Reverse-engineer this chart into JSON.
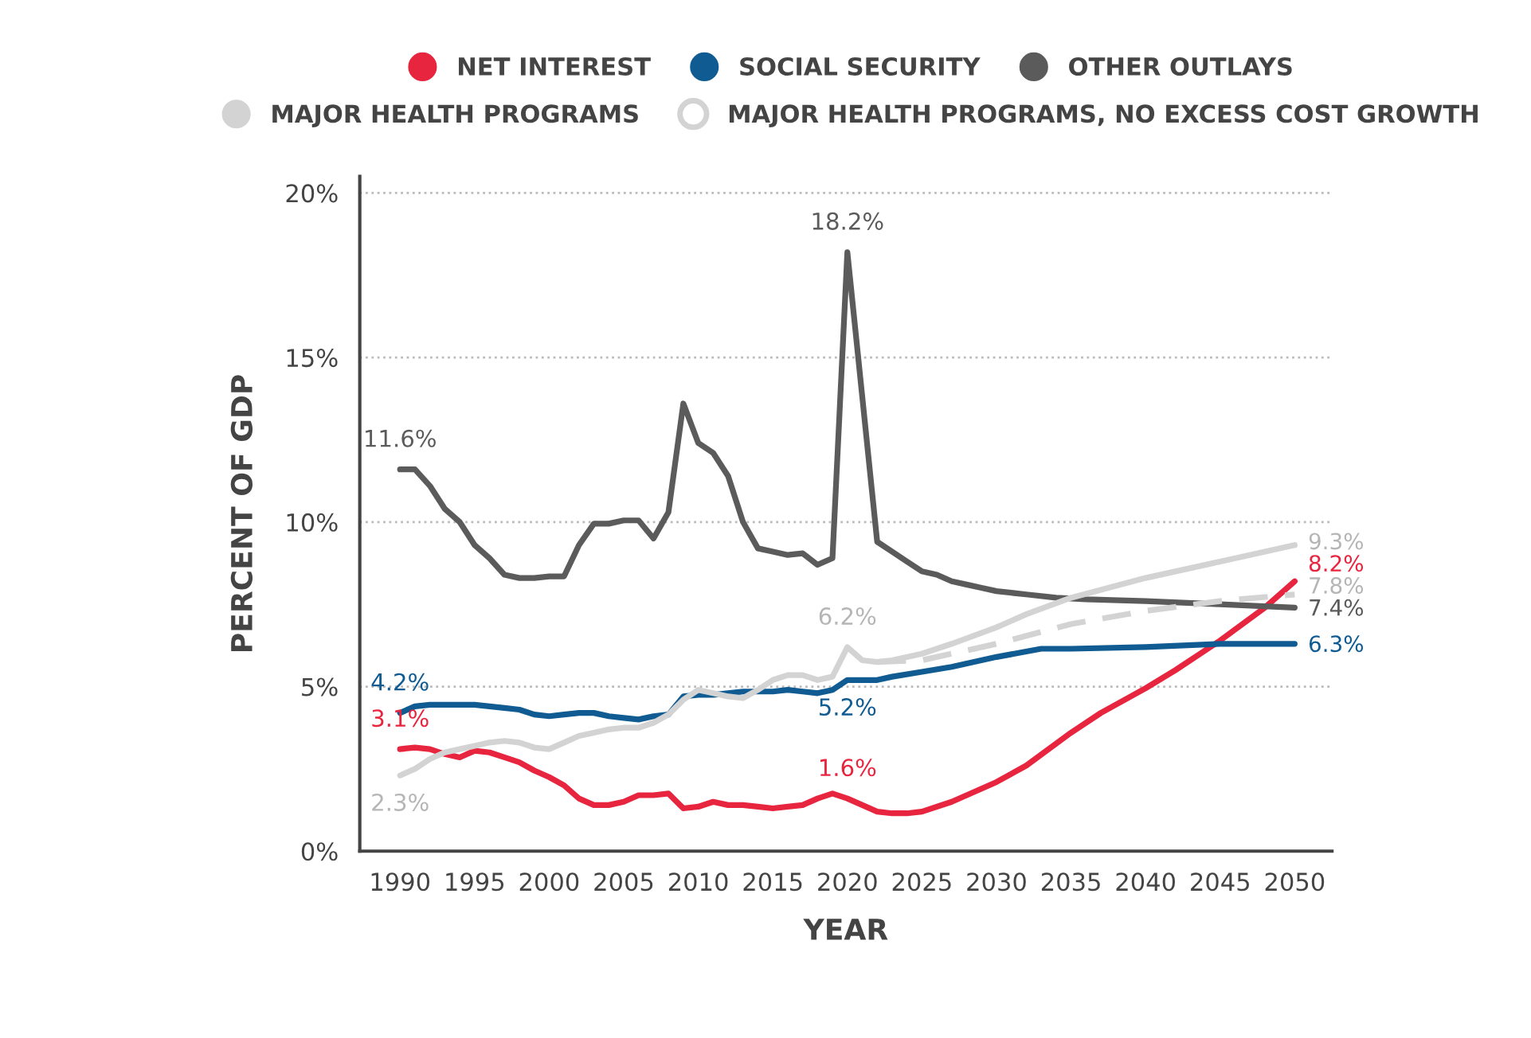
{
  "chart_data": {
    "type": "line",
    "xlabel": "YEAR",
    "ylabel": "PERCENT OF GDP",
    "xlim": [
      1987.3,
      2052.5
    ],
    "xticks": [
      1990,
      1995,
      2000,
      2005,
      2010,
      2015,
      2020,
      2025,
      2030,
      2035,
      2040,
      2045,
      2050
    ],
    "ylim": [
      0,
      20.5
    ],
    "yticks": [
      {
        "value": 0,
        "label": "0%"
      },
      {
        "value": 5,
        "label": "5%"
      },
      {
        "value": 10,
        "label": "10%"
      },
      {
        "value": 15,
        "label": "15%"
      },
      {
        "value": 20,
        "label": "20%"
      }
    ],
    "grid": "y",
    "legend": "top",
    "line_style": "solid",
    "series": [
      {
        "name": "NET INTEREST",
        "color": "#e8253f",
        "x": [
          1990,
          1991,
          1992,
          1993,
          1994,
          1995,
          1996,
          1997,
          1998,
          1999,
          2000,
          2001,
          2002,
          2003,
          2004,
          2005,
          2006,
          2007,
          2008,
          2009,
          2010,
          2011,
          2012,
          2013,
          2014,
          2015,
          2016,
          2017,
          2018,
          2019,
          2020,
          2021,
          2022,
          2023,
          2024,
          2025,
          2027,
          2030,
          2032,
          2035,
          2037,
          2040,
          2042,
          2045,
          2048,
          2050
        ],
        "values": [
          3.1,
          3.15,
          3.1,
          2.95,
          2.85,
          3.05,
          3.0,
          2.85,
          2.7,
          2.45,
          2.25,
          2.0,
          1.6,
          1.4,
          1.4,
          1.5,
          1.7,
          1.7,
          1.75,
          1.3,
          1.35,
          1.5,
          1.4,
          1.4,
          1.35,
          1.3,
          1.35,
          1.4,
          1.6,
          1.75,
          1.6,
          1.4,
          1.2,
          1.15,
          1.15,
          1.2,
          1.5,
          2.1,
          2.6,
          3.6,
          4.2,
          4.95,
          5.5,
          6.4,
          7.4,
          8.2
        ]
      },
      {
        "name": "SOCIAL SECURITY",
        "color": "#0f5b92",
        "x": [
          1990,
          1991,
          1992,
          1993,
          1994,
          1995,
          1996,
          1997,
          1998,
          1999,
          2000,
          2001,
          2002,
          2003,
          2004,
          2005,
          2006,
          2007,
          2008,
          2009,
          2010,
          2011,
          2012,
          2013,
          2014,
          2015,
          2016,
          2017,
          2018,
          2019,
          2020,
          2021,
          2022,
          2023,
          2025,
          2027,
          2030,
          2033,
          2035,
          2040,
          2045,
          2050
        ],
        "values": [
          4.2,
          4.4,
          4.45,
          4.45,
          4.45,
          4.45,
          4.4,
          4.35,
          4.3,
          4.15,
          4.1,
          4.15,
          4.2,
          4.2,
          4.1,
          4.05,
          4.0,
          4.1,
          4.15,
          4.7,
          4.75,
          4.75,
          4.8,
          4.85,
          4.85,
          4.85,
          4.9,
          4.85,
          4.8,
          4.9,
          5.2,
          5.2,
          5.2,
          5.3,
          5.45,
          5.6,
          5.9,
          6.15,
          6.15,
          6.2,
          6.3,
          6.3
        ]
      },
      {
        "name": "OTHER OUTLAYS",
        "color": "#5b5b5b",
        "x": [
          1990,
          1991,
          1992,
          1993,
          1994,
          1995,
          1996,
          1997,
          1998,
          1999,
          2000,
          2001,
          2002,
          2003,
          2004,
          2005,
          2006,
          2007,
          2008,
          2009,
          2010,
          2011,
          2012,
          2013,
          2014,
          2015,
          2016,
          2017,
          2018,
          2019,
          2020,
          2021,
          2022,
          2023,
          2024,
          2025,
          2026,
          2027,
          2028,
          2029,
          2030,
          2032,
          2034,
          2036,
          2040,
          2045,
          2050
        ],
        "values": [
          11.6,
          11.6,
          11.1,
          10.4,
          10.0,
          9.3,
          8.9,
          8.4,
          8.3,
          8.3,
          8.35,
          8.35,
          9.3,
          9.95,
          9.95,
          10.05,
          10.05,
          9.5,
          10.3,
          13.6,
          12.4,
          12.1,
          11.4,
          10.0,
          9.2,
          9.1,
          9.0,
          9.05,
          8.7,
          8.9,
          18.2,
          13.8,
          9.4,
          9.1,
          8.8,
          8.5,
          8.4,
          8.2,
          8.1,
          8.0,
          7.9,
          7.8,
          7.7,
          7.65,
          7.6,
          7.5,
          7.4
        ]
      },
      {
        "name": "MAJOR HEALTH PROGRAMS",
        "color": "#d3d3d3",
        "x": [
          1990,
          1991,
          1992,
          1993,
          1994,
          1995,
          1996,
          1997,
          1998,
          1999,
          2000,
          2001,
          2002,
          2003,
          2004,
          2005,
          2006,
          2007,
          2008,
          2009,
          2010,
          2011,
          2012,
          2013,
          2014,
          2015,
          2016,
          2017,
          2018,
          2019,
          2020,
          2021,
          2022,
          2023,
          2025,
          2027,
          2030,
          2032,
          2035,
          2040,
          2045,
          2050
        ],
        "values": [
          2.3,
          2.5,
          2.8,
          3.0,
          3.1,
          3.2,
          3.3,
          3.35,
          3.3,
          3.15,
          3.1,
          3.3,
          3.5,
          3.6,
          3.7,
          3.75,
          3.75,
          3.9,
          4.15,
          4.6,
          4.9,
          4.8,
          4.7,
          4.65,
          4.9,
          5.2,
          5.35,
          5.35,
          5.2,
          5.3,
          6.2,
          5.8,
          5.75,
          5.8,
          6.0,
          6.3,
          6.8,
          7.2,
          7.7,
          8.3,
          8.8,
          9.3
        ]
      },
      {
        "name": "MAJOR HEALTH PROGRAMS, NO EXCESS COST GROWTH",
        "color": "#d3d3d3",
        "line_style": "dashed",
        "x": [
          2022,
          2025,
          2030,
          2035,
          2040,
          2045,
          2050
        ],
        "values": [
          5.75,
          5.8,
          6.3,
          6.9,
          7.3,
          7.6,
          7.8
        ]
      }
    ],
    "annotations": [
      {
        "text": "11.6%",
        "x": 1990,
        "y": 11.6
      },
      {
        "text": "18.2%",
        "x": 2020,
        "y": 18.2
      },
      {
        "text": "4.2%",
        "x": 1990,
        "y": 4.2
      },
      {
        "text": "3.1%",
        "x": 1990,
        "y": 3.1
      },
      {
        "text": "2.3%",
        "x": 1990,
        "y": 2.3
      },
      {
        "text": "6.2%",
        "x": 2020,
        "y": 6.2
      },
      {
        "text": "5.2%",
        "x": 2020,
        "y": 5.2
      },
      {
        "text": "1.6%",
        "x": 2020,
        "y": 1.6
      },
      {
        "text": "9.3%",
        "x": 2050,
        "y": 9.3
      },
      {
        "text": "8.2%",
        "x": 2050,
        "y": 8.2
      },
      {
        "text": "7.8%",
        "x": 2050,
        "y": 7.8
      },
      {
        "text": "7.4%",
        "x": 2050,
        "y": 7.4
      },
      {
        "text": "6.3%",
        "x": 2050,
        "y": 6.3
      }
    ]
  }
}
